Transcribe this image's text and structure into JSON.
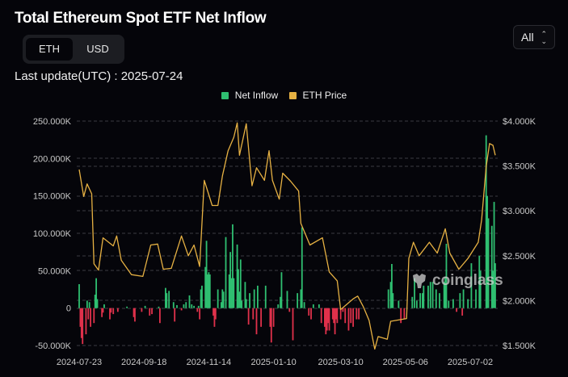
{
  "header": {
    "title": "Total Ethereum Spot ETF Net Inflow",
    "unit_toggle": {
      "options": [
        "ETH",
        "USD"
      ],
      "selected": "ETH"
    },
    "last_update": "Last update(UTC) : 2025-07-24",
    "range_select": {
      "value": "All",
      "icon": "chevron-up-down-icon"
    }
  },
  "watermark": "coinglass",
  "chart_data": {
    "type": "bar+line",
    "title": "Total Ethereum Spot ETF Net Inflow",
    "legend": {
      "position": "top-center",
      "entries": [
        "Net Inflow",
        "ETH Price"
      ]
    },
    "colors": {
      "inflow_positive": "#2fbf71",
      "inflow_negative": "#e0314b",
      "price": "#e6b143",
      "grid": "#3a3b42",
      "background": "#05050a"
    },
    "grid": true,
    "x_ticks": [
      "2024-07-23",
      "2024-09-18",
      "2024-11-14",
      "2025-01-10",
      "2025-03-10",
      "2025-05-06",
      "2025-07-02"
    ],
    "y_left": {
      "ticks": [
        250000,
        200000,
        150000,
        100000,
        50000,
        0,
        -50000
      ],
      "tick_labels": [
        "250.000K",
        "200.000K",
        "150.000K",
        "100.000K",
        "50.000K",
        "0",
        "-50.000K"
      ],
      "range": [
        -50000,
        250000
      ]
    },
    "y_right": {
      "ticks": [
        4000,
        3500,
        3000,
        2500,
        2000,
        1500
      ],
      "tick_labels": [
        "$4.000K",
        "$3.500K",
        "$3.000K",
        "$2.500K",
        "$2.000K",
        "$1.500K"
      ],
      "range": [
        1500,
        4000
      ]
    },
    "series": [
      {
        "name": "Net Inflow",
        "type": "bar",
        "axis": "left",
        "points": [
          [
            "2024-07-23",
            32000
          ],
          [
            "2024-07-24",
            -25000
          ],
          [
            "2024-07-25",
            -40000
          ],
          [
            "2024-07-26",
            -48000
          ],
          [
            "2024-07-29",
            -35000
          ],
          [
            "2024-07-30",
            10000
          ],
          [
            "2024-07-31",
            -15000
          ],
          [
            "2024-08-01",
            8000
          ],
          [
            "2024-08-02",
            -25000
          ],
          [
            "2024-08-05",
            -20000
          ],
          [
            "2024-08-06",
            18000
          ],
          [
            "2024-08-07",
            40000
          ],
          [
            "2024-08-08",
            12000
          ],
          [
            "2024-08-12",
            -12000
          ],
          [
            "2024-08-13",
            -6000
          ],
          [
            "2024-08-14",
            5000
          ],
          [
            "2024-08-19",
            -15000
          ],
          [
            "2024-08-20",
            -6000
          ],
          [
            "2024-08-22",
            -8000
          ],
          [
            "2024-08-26",
            -5000
          ],
          [
            "2024-09-03",
            2000
          ],
          [
            "2024-09-09",
            -12000
          ],
          [
            "2024-09-10",
            -18000
          ],
          [
            "2024-09-16",
            -5000
          ],
          [
            "2024-09-19",
            3000
          ],
          [
            "2024-09-23",
            -10000
          ],
          [
            "2024-09-25",
            -8000
          ],
          [
            "2024-10-01",
            2000
          ],
          [
            "2024-10-02",
            -20000
          ],
          [
            "2024-10-07",
            27000
          ],
          [
            "2024-10-08",
            20000
          ],
          [
            "2024-10-10",
            23000
          ],
          [
            "2024-10-14",
            8000
          ],
          [
            "2024-10-15",
            -18000
          ],
          [
            "2024-10-17",
            4000
          ],
          [
            "2024-10-21",
            -3000
          ],
          [
            "2024-10-23",
            5000
          ],
          [
            "2024-10-25",
            8000
          ],
          [
            "2024-10-28",
            17000
          ],
          [
            "2024-10-30",
            5000
          ],
          [
            "2024-11-01",
            3000
          ],
          [
            "2024-11-04",
            -5000
          ],
          [
            "2024-11-05",
            3000
          ],
          [
            "2024-11-06",
            -15000
          ],
          [
            "2024-11-07",
            25000
          ],
          [
            "2024-11-08",
            30000
          ],
          [
            "2024-11-11",
            55000
          ],
          [
            "2024-11-12",
            90000
          ],
          [
            "2024-11-13",
            45000
          ],
          [
            "2024-11-14",
            48000
          ],
          [
            "2024-11-15",
            45000
          ],
          [
            "2024-11-18",
            -10000
          ],
          [
            "2024-11-19",
            -25000
          ],
          [
            "2024-11-20",
            -15000
          ],
          [
            "2024-11-22",
            25000
          ],
          [
            "2024-11-25",
            8000
          ],
          [
            "2024-11-26",
            25000
          ],
          [
            "2024-11-27",
            22000
          ],
          [
            "2024-11-29",
            95000
          ],
          [
            "2024-12-02",
            45000
          ],
          [
            "2024-12-03",
            75000
          ],
          [
            "2024-12-04",
            40000
          ],
          [
            "2024-12-05",
            112000
          ],
          [
            "2024-12-06",
            40000
          ],
          [
            "2024-12-09",
            85000
          ],
          [
            "2024-12-10",
            52000
          ],
          [
            "2024-12-11",
            22000
          ],
          [
            "2024-12-12",
            65000
          ],
          [
            "2024-12-13",
            10000
          ],
          [
            "2024-12-16",
            35000
          ],
          [
            "2024-12-17",
            12000
          ],
          [
            "2024-12-19",
            -22000
          ],
          [
            "2024-12-20",
            20000
          ],
          [
            "2024-12-23",
            -15000
          ],
          [
            "2024-12-24",
            25000
          ],
          [
            "2024-12-26",
            -35000
          ],
          [
            "2024-12-27",
            30000
          ],
          [
            "2024-12-30",
            -25000
          ],
          [
            "2025-01-03",
            30000
          ],
          [
            "2025-01-07",
            -25000
          ],
          [
            "2025-01-08",
            -46000
          ],
          [
            "2025-01-10",
            -25000
          ],
          [
            "2025-01-14",
            5000
          ],
          [
            "2025-01-16",
            15000
          ],
          [
            "2025-01-17",
            48000
          ],
          [
            "2025-01-22",
            23000
          ],
          [
            "2025-01-24",
            -5000
          ],
          [
            "2025-01-27",
            -43000
          ],
          [
            "2025-01-31",
            20000
          ],
          [
            "2025-02-03",
            25000
          ],
          [
            "2025-02-04",
            108000
          ],
          [
            "2025-02-06",
            8000
          ],
          [
            "2025-02-10",
            -10000
          ],
          [
            "2025-02-12",
            -15000
          ],
          [
            "2025-02-14",
            5000
          ],
          [
            "2025-02-19",
            5000
          ],
          [
            "2025-02-21",
            -20000
          ],
          [
            "2025-02-24",
            -25000
          ],
          [
            "2025-02-25",
            -35000
          ],
          [
            "2025-02-26",
            -30000
          ],
          [
            "2025-02-27",
            -20000
          ],
          [
            "2025-02-28",
            -30000
          ],
          [
            "2025-03-03",
            -15000
          ],
          [
            "2025-03-04",
            -20000
          ],
          [
            "2025-03-05",
            -35000
          ],
          [
            "2025-03-06",
            -15000
          ],
          [
            "2025-03-07",
            -20000
          ],
          [
            "2025-03-10",
            -15000
          ],
          [
            "2025-03-12",
            -5000
          ],
          [
            "2025-03-14",
            -20000
          ],
          [
            "2025-03-17",
            -30000
          ],
          [
            "2025-03-19",
            -20000
          ],
          [
            "2025-03-21",
            -25000
          ],
          [
            "2025-03-24",
            -15000
          ],
          [
            "2025-03-26",
            -15000
          ],
          [
            "2025-04-21",
            25000
          ],
          [
            "2025-04-23",
            35000
          ],
          [
            "2025-04-24",
            59000
          ],
          [
            "2025-04-25",
            20000
          ],
          [
            "2025-04-30",
            10000
          ],
          [
            "2025-05-02",
            -20000
          ],
          [
            "2025-05-05",
            -15000
          ],
          [
            "2025-05-12",
            15000
          ],
          [
            "2025-05-14",
            40000
          ],
          [
            "2025-05-16",
            10000
          ],
          [
            "2025-05-19",
            20000
          ],
          [
            "2025-05-21",
            20000
          ],
          [
            "2025-05-22",
            30000
          ],
          [
            "2025-05-26",
            30000
          ],
          [
            "2025-05-28",
            35000
          ],
          [
            "2025-05-30",
            35000
          ],
          [
            "2025-06-02",
            25000
          ],
          [
            "2025-06-05",
            20000
          ],
          [
            "2025-06-09",
            35000
          ],
          [
            "2025-06-10",
            42000
          ],
          [
            "2025-06-11",
            86000
          ],
          [
            "2025-06-13",
            10000
          ],
          [
            "2025-06-17",
            12000
          ],
          [
            "2025-06-20",
            -5000
          ],
          [
            "2025-06-23",
            20000
          ],
          [
            "2025-06-25",
            -10000
          ],
          [
            "2025-06-26",
            25000
          ],
          [
            "2025-06-30",
            12000
          ],
          [
            "2025-07-03",
            60000
          ],
          [
            "2025-07-07",
            25000
          ],
          [
            "2025-07-10",
            70000
          ],
          [
            "2025-07-11",
            50000
          ],
          [
            "2025-07-16",
            231000
          ],
          [
            "2025-07-17",
            150000
          ],
          [
            "2025-07-18",
            120000
          ],
          [
            "2025-07-21",
            110000
          ],
          [
            "2025-07-22",
            50000
          ],
          [
            "2025-07-23",
            142000
          ],
          [
            "2025-07-24",
            60000
          ]
        ]
      },
      {
        "name": "ETH Price",
        "type": "line",
        "axis": "right",
        "points": [
          [
            "2024-07-23",
            3460
          ],
          [
            "2024-07-27",
            3160
          ],
          [
            "2024-07-30",
            3300
          ],
          [
            "2024-08-03",
            3190
          ],
          [
            "2024-08-05",
            2410
          ],
          [
            "2024-08-09",
            2340
          ],
          [
            "2024-08-13",
            2700
          ],
          [
            "2024-08-22",
            2610
          ],
          [
            "2024-08-25",
            2720
          ],
          [
            "2024-08-29",
            2450
          ],
          [
            "2024-09-07",
            2290
          ],
          [
            "2024-09-17",
            2270
          ],
          [
            "2024-09-24",
            2620
          ],
          [
            "2024-09-30",
            2630
          ],
          [
            "2024-10-05",
            2350
          ],
          [
            "2024-10-12",
            2360
          ],
          [
            "2024-10-21",
            2720
          ],
          [
            "2024-10-27",
            2500
          ],
          [
            "2024-11-01",
            2620
          ],
          [
            "2024-11-06",
            2380
          ],
          [
            "2024-11-10",
            3340
          ],
          [
            "2024-11-17",
            3060
          ],
          [
            "2024-11-22",
            3060
          ],
          [
            "2024-11-26",
            3390
          ],
          [
            "2024-12-01",
            3670
          ],
          [
            "2024-12-06",
            3820
          ],
          [
            "2024-12-09",
            3980
          ],
          [
            "2024-12-11",
            3620
          ],
          [
            "2024-12-17",
            3970
          ],
          [
            "2024-12-22",
            3280
          ],
          [
            "2024-12-26",
            3480
          ],
          [
            "2025-01-02",
            3340
          ],
          [
            "2025-01-06",
            3670
          ],
          [
            "2025-01-09",
            3340
          ],
          [
            "2025-01-15",
            3130
          ],
          [
            "2025-01-18",
            3420
          ],
          [
            "2025-01-25",
            3330
          ],
          [
            "2025-02-01",
            3220
          ],
          [
            "2025-02-03",
            2860
          ],
          [
            "2025-02-11",
            2620
          ],
          [
            "2025-02-22",
            2700
          ],
          [
            "2025-02-28",
            2320
          ],
          [
            "2025-03-07",
            2220
          ],
          [
            "2025-03-10",
            1900
          ],
          [
            "2025-03-21",
            2020
          ],
          [
            "2025-03-25",
            2050
          ],
          [
            "2025-03-30",
            1930
          ],
          [
            "2025-04-04",
            1780
          ],
          [
            "2025-04-09",
            1460
          ],
          [
            "2025-04-12",
            1600
          ],
          [
            "2025-04-20",
            1570
          ],
          [
            "2025-04-23",
            1770
          ],
          [
            "2025-05-07",
            1800
          ],
          [
            "2025-05-09",
            2470
          ],
          [
            "2025-05-13",
            2650
          ],
          [
            "2025-05-18",
            2500
          ],
          [
            "2025-05-27",
            2650
          ],
          [
            "2025-06-03",
            2530
          ],
          [
            "2025-06-10",
            2800
          ],
          [
            "2025-06-14",
            2530
          ],
          [
            "2025-06-22",
            2350
          ],
          [
            "2025-06-30",
            2470
          ],
          [
            "2025-07-09",
            2650
          ],
          [
            "2025-07-12",
            2900
          ],
          [
            "2025-07-16",
            3490
          ],
          [
            "2025-07-19",
            3750
          ],
          [
            "2025-07-22",
            3730
          ],
          [
            "2025-07-24",
            3620
          ]
        ]
      }
    ]
  }
}
